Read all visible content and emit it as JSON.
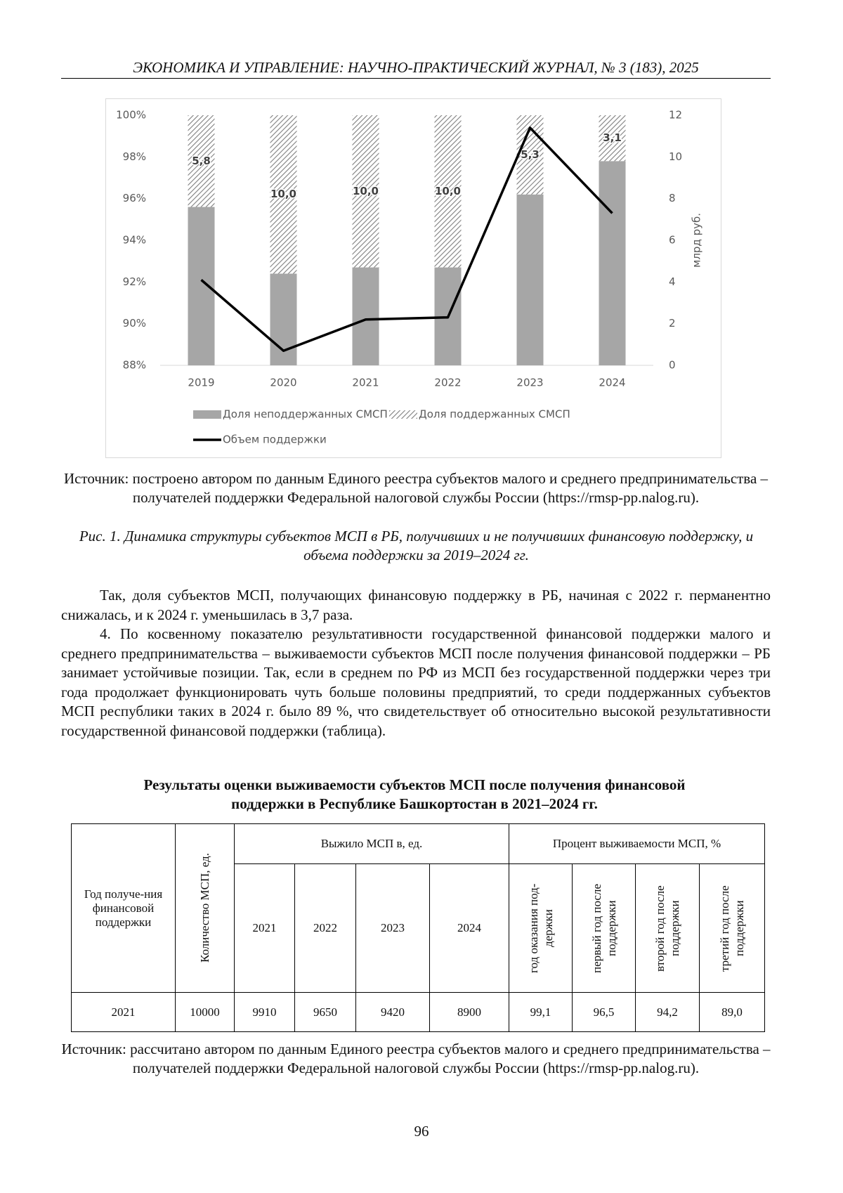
{
  "header": "ЭКОНОМИКА И УПРАВЛЕНИЕ: НАУЧНО-ПРАКТИЧЕСКИЙ ЖУРНАЛ, № 3 (183), 2025",
  "chart_data": {
    "type": "bar",
    "stacked": true,
    "categories": [
      "2019",
      "2020",
      "2021",
      "2022",
      "2023",
      "2024"
    ],
    "series": [
      {
        "name": "Доля неподдержанных СМСП",
        "color": "#a6a6a6",
        "values": [
          95.6,
          92.4,
          92.7,
          92.7,
          96.2,
          97.8
        ]
      },
      {
        "name": "Доля поддержанных СМСП",
        "color": "#7f7f7f",
        "pattern": "hatch",
        "values": [
          4.4,
          7.6,
          7.3,
          7.3,
          3.8,
          2.2
        ]
      },
      {
        "name": "Объем поддержки",
        "color": "#000000",
        "type": "line",
        "axis": "y2",
        "values": [
          4.1,
          0.7,
          2.2,
          2.3,
          11.4,
          7.3
        ]
      }
    ],
    "bar_labels": [
      "5,8",
      "10,0",
      "10,0",
      "10,0",
      "5,3",
      "3,1"
    ],
    "ylim": [
      88,
      100
    ],
    "yticks": [
      {
        "value": 88,
        "label": "88%"
      },
      {
        "value": 90,
        "label": "90%"
      },
      {
        "value": 92,
        "label": "92%"
      },
      {
        "value": 94,
        "label": "94%"
      },
      {
        "value": 96,
        "label": "96%"
      },
      {
        "value": 98,
        "label": "98%"
      },
      {
        "value": 100,
        "label": "100%"
      }
    ],
    "y2lim": [
      0,
      12
    ],
    "y2ticks": [
      0,
      2,
      4,
      6,
      8,
      10,
      12
    ],
    "y2label": "млрд руб.",
    "grid": false,
    "legend": "bottom"
  },
  "figure": {
    "source": "Источник: построено автором по данным Единого реестра субъектов малого и среднего предпринимательства – получателей поддержки Федеральной налоговой службы России (https://rmsp-pp.nalog.ru).",
    "caption": "Рис. 1. Динамика структуры субъектов МСП в РБ, получивших и не получивших финансовую поддержку, и объема поддержки за 2019–2024 гг."
  },
  "body": [
    "Так, доля субъектов МСП, получающих финансовую поддержку в РБ, начиная с 2022 г. перманентно снижалась, и к 2024 г. уменьшилась в 3,7 раза.",
    "4. По косвенному показателю результативности государственной финансовой поддержки малого и среднего предпринимательства – выживаемости субъектов МСП после получения финансовой поддержки – РБ занимает устойчивые позиции. Так, если в среднем по РФ из МСП без государственной поддержки через три года продолжает функционировать чуть больше половины предприятий, то среди поддержанных субъектов МСП республики таких в 2024 г. было 89 %, что свидетельствует об относительно высокой результативности государственной финансовой поддержки (таблица)."
  ],
  "table": {
    "title": "Результаты оценки выживаемости субъектов МСП после получения финансовой поддержки в Республике Башкортостан в 2021–2024 гг.",
    "header": [
      "Год получе-ния финансовой поддержки",
      "Количество МСП, ед.",
      "Выжило МСП в, ед.",
      "Процент выживаемости МСП, %"
    ],
    "subheader": [
      "2021",
      "2022",
      "2023",
      "2024",
      "год оказания под-держки",
      "первый год после поддержки",
      "второй год после поддержки",
      "третий год после поддержки"
    ],
    "rows": [
      [
        "2021",
        "10000",
        "9910",
        "9650",
        "9420",
        "8900",
        "99,1",
        "96,5",
        "94,2",
        "89,0"
      ]
    ],
    "source": "Источник: рассчитано автором по данным Единого реестра субъектов малого и среднего предпринимательства – получателей поддержки Федеральной налоговой службы России (https://rmsp-pp.nalog.ru)."
  },
  "page_number": "96"
}
